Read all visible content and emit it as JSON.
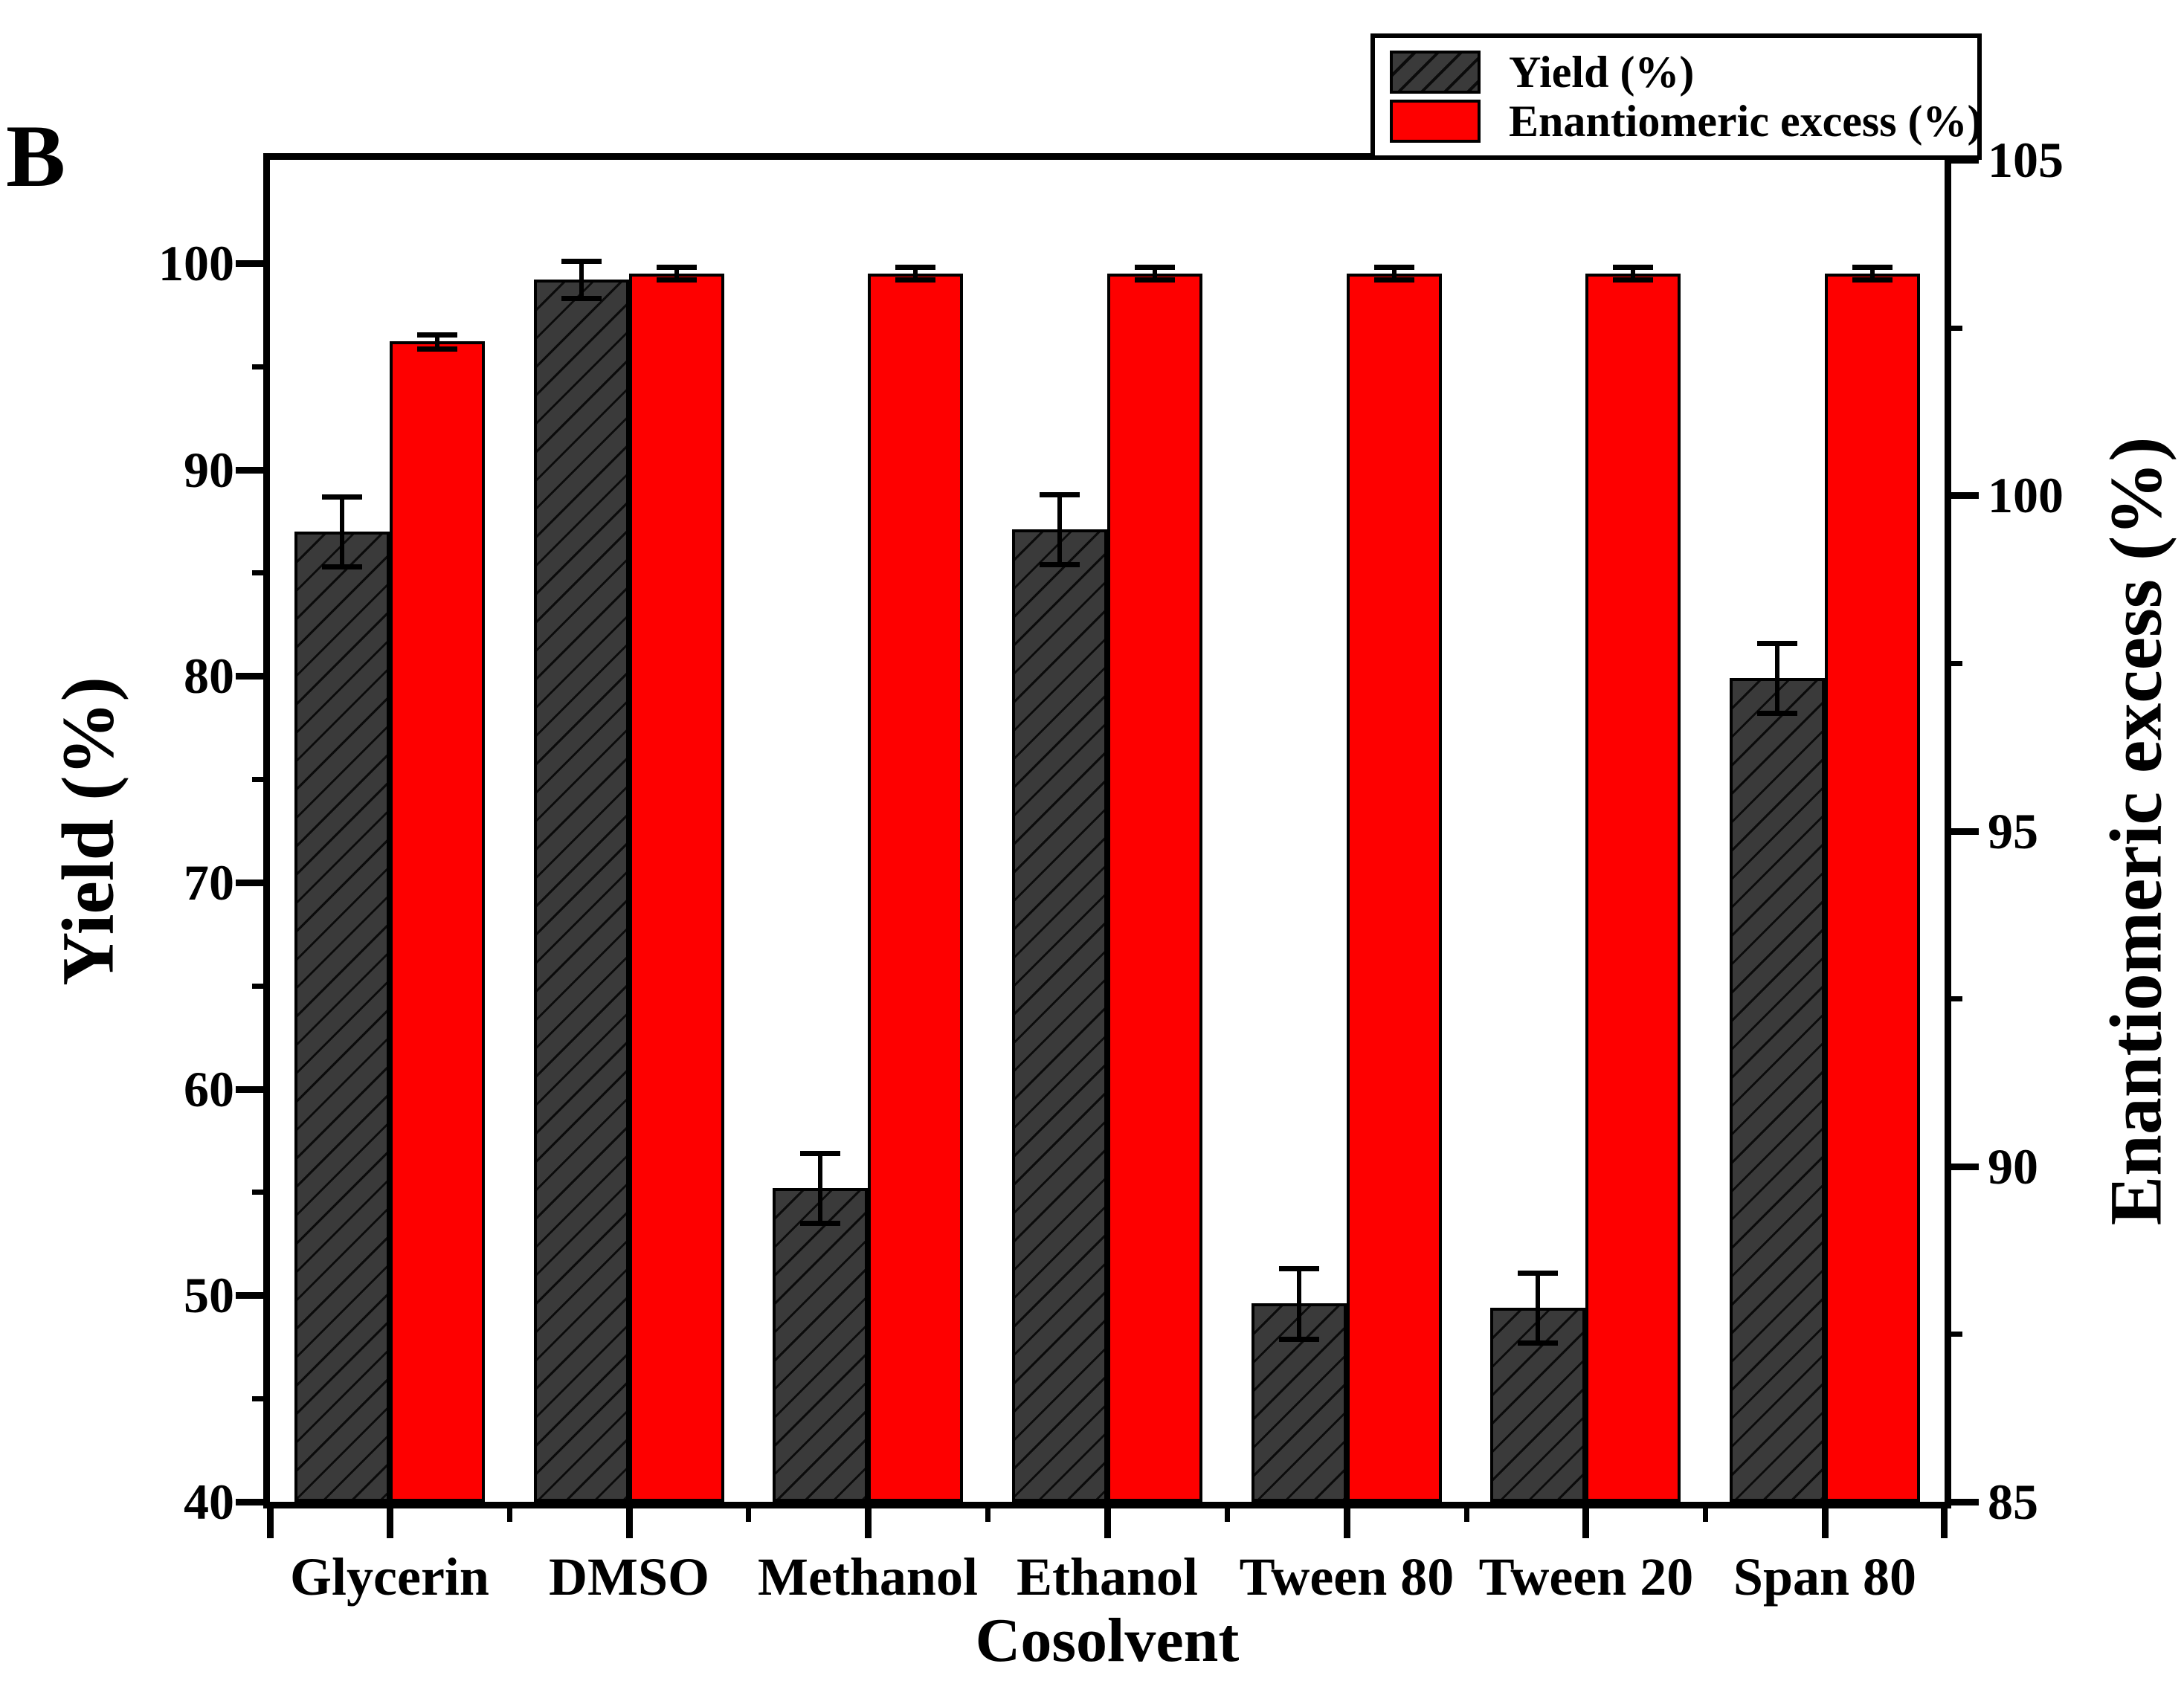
{
  "panel_label": "B",
  "legend": {
    "position": "top-right",
    "items": [
      {
        "label": "Yield (%)",
        "swatch": "dark-hatched"
      },
      {
        "label": "Enantiomeric excess (%)",
        "swatch": "red-solid"
      }
    ]
  },
  "axes": {
    "x": {
      "title": "Cosolvent"
    },
    "left": {
      "title": "Yield (%)",
      "ticks": [
        40,
        50,
        60,
        70,
        80,
        90,
        100
      ],
      "minor_ticks": [
        45,
        55,
        65,
        75,
        85,
        95
      ],
      "range": [
        40,
        105
      ]
    },
    "right": {
      "title": "Enantiomeric excess (%)",
      "ticks": [
        85,
        90,
        95,
        100,
        105
      ],
      "minor_ticks": [
        87.5,
        92.5,
        97.5,
        102.5
      ],
      "range": [
        85,
        105
      ]
    }
  },
  "colors": {
    "yield_bar": "#3a3a3a",
    "yield_hatch": "#0b0b0b",
    "ee_bar": "#fe0000",
    "axis_and_text": "#000000",
    "background": "#ffffff"
  },
  "chart_data": {
    "type": "bar",
    "title": "B",
    "categories": [
      "Glycerin",
      "DMSO",
      "Methanol",
      "Ethanol",
      "Tween 80",
      "Tween 20",
      "Span 80"
    ],
    "series": [
      {
        "name": "Yield (%)",
        "axis": "left",
        "style": "dark-hatched",
        "values": [
          87.0,
          99.2,
          55.2,
          87.1,
          49.6,
          49.4,
          79.9
        ],
        "errors": [
          1.7,
          0.9,
          1.7,
          1.7,
          1.7,
          1.7,
          1.7
        ]
      },
      {
        "name": "Enantiomeric excess (%)",
        "axis": "right",
        "style": "red-solid",
        "values": [
          96.2,
          99.5,
          99.5,
          99.5,
          99.5,
          99.5,
          99.5
        ],
        "errors": [
          0.35,
          0.3,
          0.3,
          0.3,
          0.3,
          0.3,
          0.3
        ]
      }
    ],
    "xlabel": "Cosolvent",
    "ylabel_left": "Yield (%)",
    "ylabel_right": "Enantiomeric excess (%)",
    "ylim_left": [
      40,
      105
    ],
    "ylim_right": [
      85,
      105
    ],
    "grid": false,
    "legend_position": "top-right",
    "bars_drawn_on_left_scale": true,
    "error_bars": true
  }
}
